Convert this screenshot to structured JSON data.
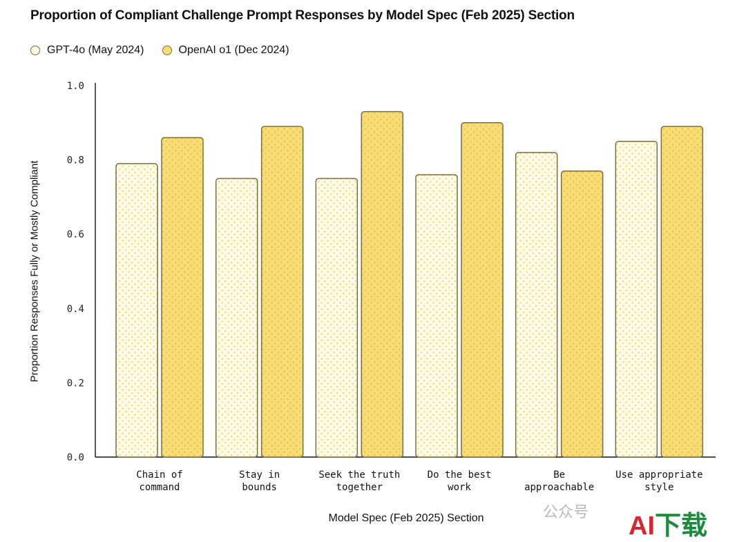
{
  "chart_data": {
    "type": "bar",
    "title": "Proportion of Compliant Challenge Prompt Responses by Model Spec (Feb 2025) Section",
    "xlabel": "Model Spec (Feb 2025) Section",
    "ylabel": "Proportion Responses Fully or Mostly Compliant",
    "ylim": [
      0,
      1.0
    ],
    "yticks": [
      "0.0",
      "0.2",
      "0.4",
      "0.6",
      "0.8",
      "1.0"
    ],
    "grid": false,
    "legend_position": "top-left",
    "categories": [
      [
        "Chain of",
        "command"
      ],
      [
        "Stay in",
        "bounds"
      ],
      [
        "Seek the truth",
        "together"
      ],
      [
        "Do the best",
        "work"
      ],
      [
        "Be",
        "approachable"
      ],
      [
        "Use appropriate",
        "style"
      ]
    ],
    "series": [
      {
        "name": "GPT-4o (May 2024)",
        "values": [
          0.79,
          0.75,
          0.75,
          0.76,
          0.82,
          0.85
        ],
        "color": "#fffbe8",
        "dot_color": "#f3dc7e"
      },
      {
        "name": "OpenAI o1 (Dec 2024)",
        "values": [
          0.86,
          0.89,
          0.93,
          0.9,
          0.77,
          0.89
        ],
        "color": "#f8dc75",
        "dot_color": "#e9c550"
      }
    ],
    "bar_stroke": "#7a6c3e"
  },
  "watermark": {
    "text": "公众号",
    "logo_a": "AI",
    "logo_b": "下载"
  }
}
